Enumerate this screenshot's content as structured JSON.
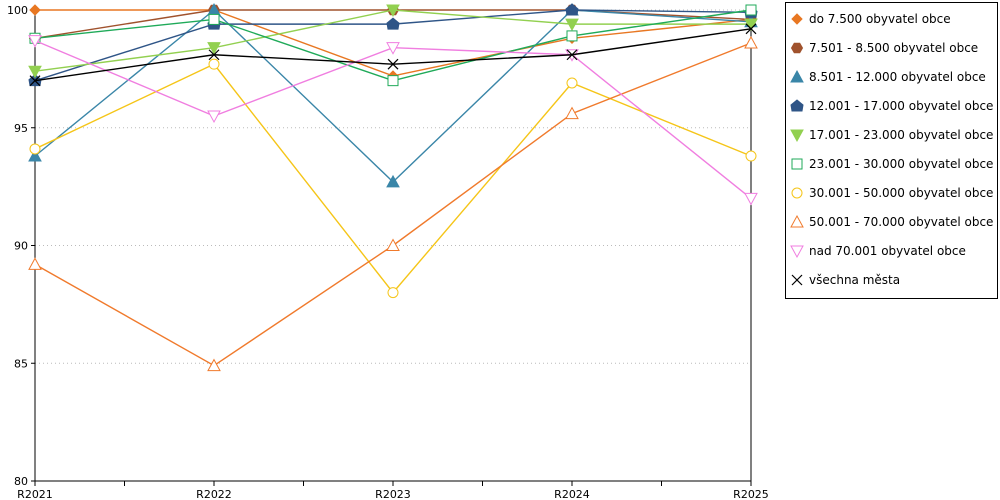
{
  "chart_data": {
    "type": "line",
    "title": "",
    "xlabel": "",
    "ylabel": "",
    "categories": [
      "R2021",
      "R2022",
      "R2023",
      "R2024",
      "R2025"
    ],
    "ylim": [
      80,
      100
    ],
    "yticks": [
      80,
      85,
      90,
      95,
      100
    ],
    "grid": "horizontal dotted",
    "legend": "right",
    "series": [
      {
        "name": "do 7.500 obyvatel obce",
        "color": "#e87722",
        "marker": "diamond-filled",
        "values": [
          100,
          100,
          97.2,
          98.8,
          99.6
        ]
      },
      {
        "name": "7.501 - 8.500 obyvatel obce",
        "color": "#a0522d",
        "marker": "hexagon-filled",
        "values": [
          98.8,
          100,
          100,
          100,
          99.6
        ]
      },
      {
        "name": "8.501 - 12.000 obyvatel obce",
        "color": "#3a86a8",
        "marker": "triangle-filled",
        "values": [
          93.8,
          100,
          92.7,
          100,
          99.5
        ]
      },
      {
        "name": "12.001 - 17.000 obyvatel obce",
        "color": "#2f5587",
        "marker": "pentagon-filled",
        "values": [
          97,
          99.4,
          99.4,
          100,
          99.9
        ]
      },
      {
        "name": "17.001 - 23.000 obyvatel obce",
        "color": "#92d050",
        "marker": "triangle-down-filled",
        "values": [
          97.4,
          98.4,
          100,
          99.4,
          99.4
        ]
      },
      {
        "name": "23.001 - 30.000 obyvatel obce",
        "color": "#1faa59",
        "marker": "square-open",
        "values": [
          98.8,
          99.6,
          97,
          98.9,
          100
        ]
      },
      {
        "name": "30.001 - 50.000 obyvatel obce",
        "color": "#f5c518",
        "marker": "circle-open",
        "values": [
          94.1,
          97.7,
          88,
          96.9,
          93.8
        ]
      },
      {
        "name": "50.001 - 70.000 obyvatel obce",
        "color": "#f07a2c",
        "marker": "triangle-open",
        "values": [
          89.2,
          84.9,
          90,
          95.6,
          98.6
        ]
      },
      {
        "name": "nad 70.001 obyvatel obce",
        "color": "#f07ee0",
        "marker": "triangle-down-open",
        "values": [
          98.7,
          95.5,
          98.4,
          98.1,
          92
        ]
      },
      {
        "name": "všechna města",
        "color": "#000000",
        "marker": "x",
        "values": [
          97,
          98.1,
          97.7,
          98.1,
          99.2
        ]
      }
    ]
  }
}
